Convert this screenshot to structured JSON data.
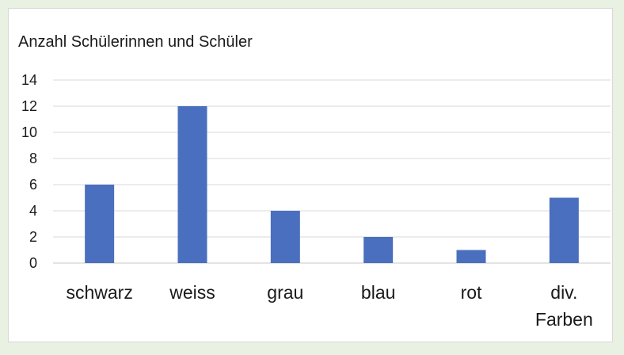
{
  "chart_data": {
    "type": "bar",
    "title": "Anzahl Schülerinnen und Schüler",
    "xlabel": "",
    "ylabel": "",
    "categories": [
      [
        "schwarz"
      ],
      [
        "weiss"
      ],
      [
        "grau"
      ],
      [
        "blau"
      ],
      [
        "rot"
      ],
      [
        "div.",
        "Farben"
      ]
    ],
    "values": [
      6,
      12,
      4,
      2,
      1,
      5
    ],
    "ylim": [
      0,
      14
    ],
    "yticks": [
      0,
      2,
      4,
      6,
      8,
      10,
      12,
      14
    ],
    "grid": true,
    "legend": "none",
    "bar_color": "#4a6fbf"
  }
}
